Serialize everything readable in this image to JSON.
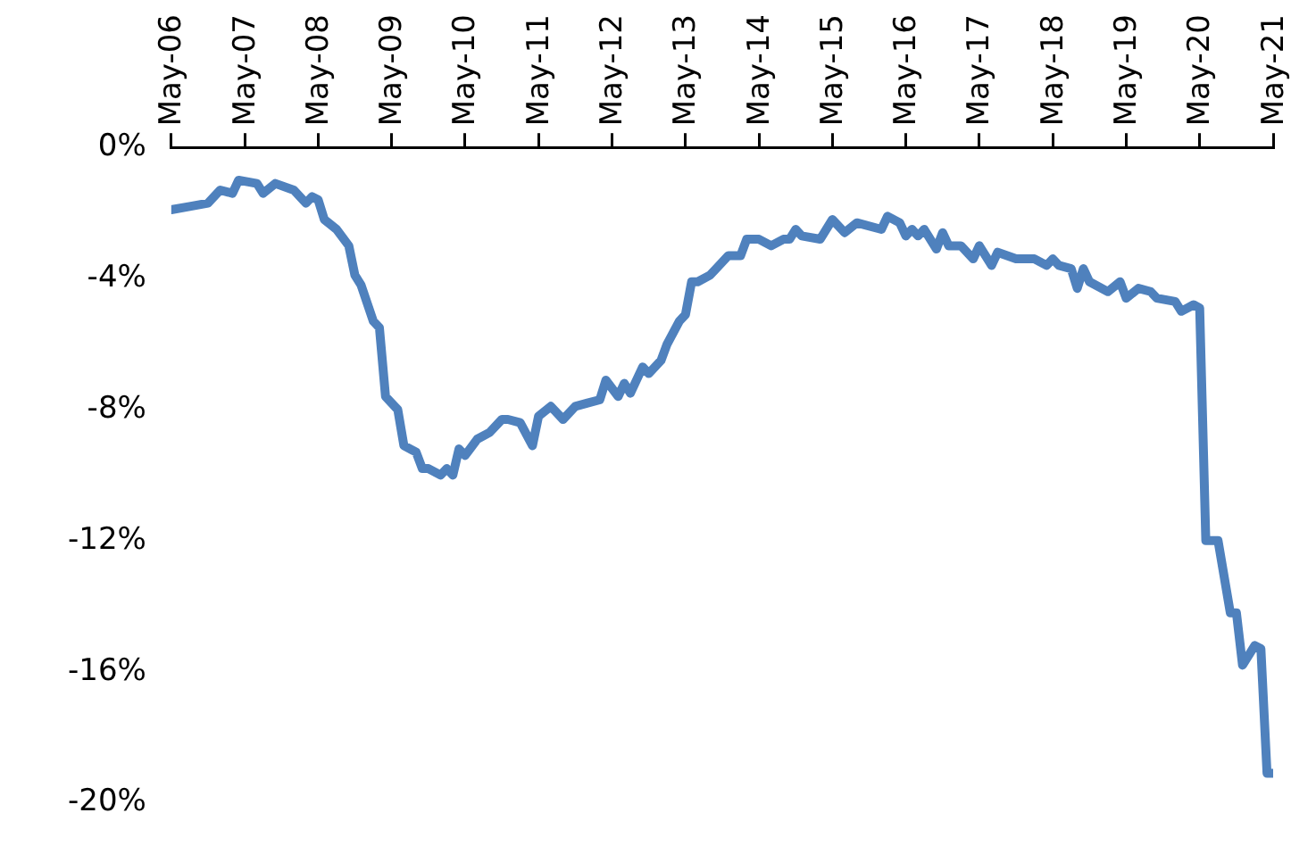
{
  "chart_data": {
    "type": "line",
    "x": [
      "2006-05",
      "2006-08",
      "2006-11",
      "2007-01",
      "2007-03",
      "2007-04",
      "2007-07",
      "2007-08",
      "2007-10",
      "2008-01",
      "2008-03",
      "2008-04",
      "2008-05",
      "2008-06",
      "2008-08",
      "2008-10",
      "2008-11",
      "2008-12",
      "2009-02",
      "2009-03",
      "2009-04",
      "2009-06",
      "2009-07",
      "2009-09",
      "2009-10",
      "2009-11",
      "2010-01",
      "2010-02",
      "2010-03",
      "2010-04",
      "2010-05",
      "2010-07",
      "2010-09",
      "2010-11",
      "2010-12",
      "2011-02",
      "2011-04",
      "2011-05",
      "2011-07",
      "2011-09",
      "2011-11",
      "2012-01",
      "2012-03",
      "2012-04",
      "2012-06",
      "2012-07",
      "2012-08",
      "2012-10",
      "2012-11",
      "2013-01",
      "2013-02",
      "2013-04",
      "2013-05",
      "2013-06",
      "2013-07",
      "2013-09",
      "2013-10",
      "2013-12",
      "2014-02",
      "2014-03",
      "2014-05",
      "2014-07",
      "2014-09",
      "2014-10",
      "2014-11",
      "2014-12",
      "2015-03",
      "2015-05",
      "2015-07",
      "2015-09",
      "2016-01",
      "2016-02",
      "2016-04",
      "2016-05",
      "2016-06",
      "2016-07",
      "2016-08",
      "2016-10",
      "2016-11",
      "2016-12",
      "2017-02",
      "2017-04",
      "2017-05",
      "2017-07",
      "2017-08",
      "2017-11",
      "2018-02",
      "2018-04",
      "2018-05",
      "2018-06",
      "2018-08",
      "2018-09",
      "2018-10",
      "2018-11",
      "2019-02",
      "2019-04",
      "2019-05",
      "2019-07",
      "2019-09",
      "2019-10",
      "2020-01",
      "2020-02",
      "2020-04",
      "2020-05",
      "2020-06",
      "2020-08",
      "2020-10",
      "2020-11",
      "2020-12",
      "2021-02",
      "2021-03",
      "2021-04",
      "2021-05"
    ],
    "series": [
      {
        "color": "#4f81bd",
        "values": [
          -1.9,
          -1.8,
          -1.7,
          -1.3,
          -1.4,
          -1.0,
          -1.1,
          -1.4,
          -1.1,
          -1.3,
          -1.7,
          -1.5,
          -1.6,
          -2.2,
          -2.5,
          -3.0,
          -3.9,
          -4.2,
          -5.3,
          -5.5,
          -7.6,
          -8.0,
          -9.1,
          -9.3,
          -9.8,
          -9.8,
          -10.0,
          -9.8,
          -10.0,
          -9.2,
          -9.4,
          -8.9,
          -8.7,
          -8.3,
          -8.3,
          -8.4,
          -9.1,
          -8.2,
          -7.9,
          -8.3,
          -7.9,
          -7.8,
          -7.7,
          -7.1,
          -7.6,
          -7.2,
          -7.5,
          -6.7,
          -6.9,
          -6.5,
          -6.0,
          -5.3,
          -5.1,
          -4.1,
          -4.1,
          -3.9,
          -3.7,
          -3.3,
          -3.3,
          -2.8,
          -2.8,
          -3.0,
          -2.8,
          -2.8,
          -2.5,
          -2.7,
          -2.8,
          -2.2,
          -2.6,
          -2.3,
          -2.5,
          -2.1,
          -2.3,
          -2.7,
          -2.5,
          -2.7,
          -2.5,
          -3.1,
          -2.6,
          -3.0,
          -3.0,
          -3.4,
          -3.0,
          -3.6,
          -3.2,
          -3.4,
          -3.4,
          -3.6,
          -3.4,
          -3.6,
          -3.7,
          -4.3,
          -3.7,
          -4.1,
          -4.4,
          -4.1,
          -4.6,
          -4.3,
          -4.4,
          -4.6,
          -4.7,
          -5.0,
          -4.8,
          -4.9,
          -12.0,
          -12.0,
          -14.2,
          -14.2,
          -15.8,
          -15.2,
          -15.3,
          -19.1,
          -19.1
        ]
      }
    ],
    "xlim": [
      "2006-05",
      "2021-05"
    ],
    "xticks": [
      {
        "value": "2006-05",
        "label": "May-06"
      },
      {
        "value": "2007-05",
        "label": "May-07"
      },
      {
        "value": "2008-05",
        "label": "May-08"
      },
      {
        "value": "2009-05",
        "label": "May-09"
      },
      {
        "value": "2010-05",
        "label": "May-10"
      },
      {
        "value": "2011-05",
        "label": "May-11"
      },
      {
        "value": "2012-05",
        "label": "May-12"
      },
      {
        "value": "2013-05",
        "label": "May-13"
      },
      {
        "value": "2014-05",
        "label": "May-14"
      },
      {
        "value": "2015-05",
        "label": "May-15"
      },
      {
        "value": "2016-05",
        "label": "May-16"
      },
      {
        "value": "2017-05",
        "label": "May-17"
      },
      {
        "value": "2018-05",
        "label": "May-18"
      },
      {
        "value": "2019-05",
        "label": "May-19"
      },
      {
        "value": "2020-05",
        "label": "May-20"
      },
      {
        "value": "2021-05",
        "label": "May-21"
      }
    ],
    "ylim": [
      -20,
      0
    ],
    "yticks": [
      {
        "value": 0,
        "label": "0%"
      },
      {
        "value": -4,
        "label": "-4%"
      },
      {
        "value": -8,
        "label": "-8%"
      },
      {
        "value": -12,
        "label": "-12%"
      },
      {
        "value": -16,
        "label": "-16%"
      },
      {
        "value": -20,
        "label": "-20%"
      }
    ],
    "grid": false,
    "legend": false,
    "marker": "none",
    "line_style": "solid"
  }
}
